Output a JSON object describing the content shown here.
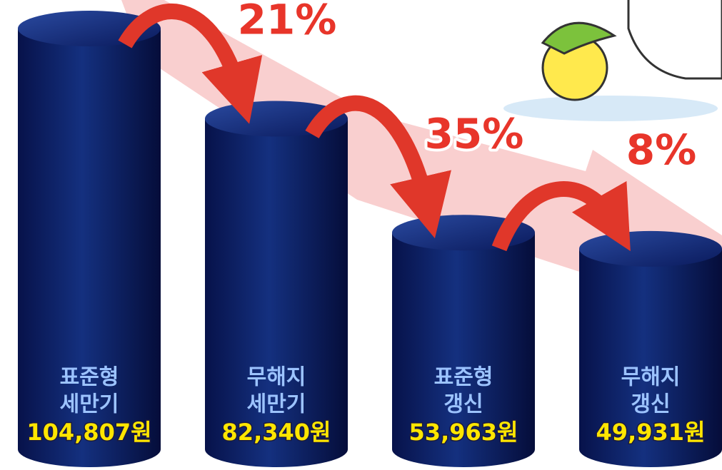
{
  "chart_data": {
    "type": "bar",
    "categories": [
      [
        "표준형",
        "세만기"
      ],
      [
        "무해지",
        "세만기"
      ],
      [
        "표준형",
        "갱신"
      ],
      [
        "무해지",
        "갱신"
      ]
    ],
    "values": [
      104807,
      82340,
      53963,
      49931
    ],
    "value_labels": [
      "104,807원",
      "82,340원",
      "53,963원",
      "49,931원"
    ],
    "annotations": [
      "21%",
      "35%",
      "8%"
    ],
    "color": "#0d1f63"
  }
}
